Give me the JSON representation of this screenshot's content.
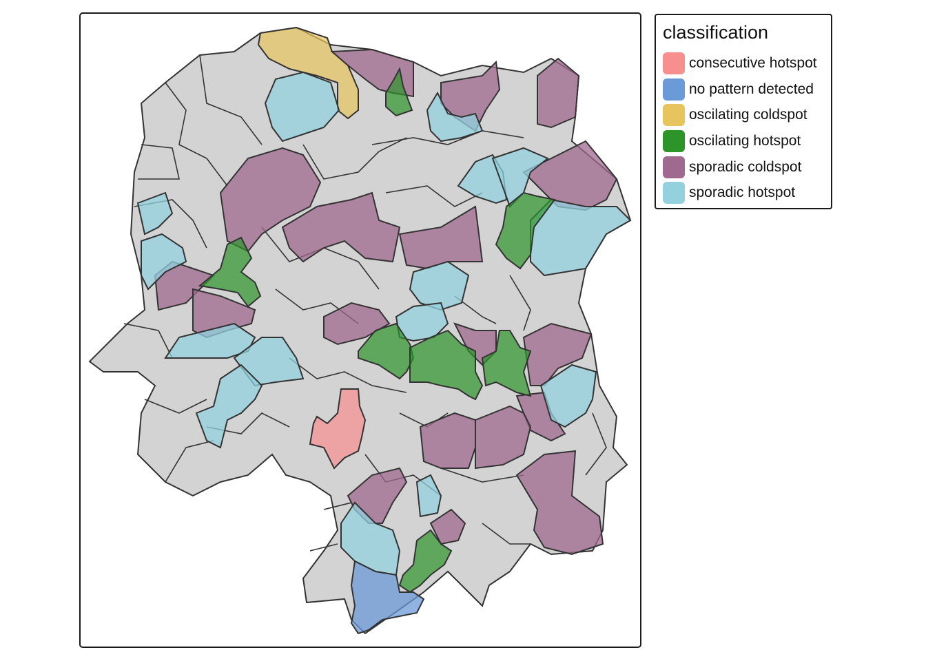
{
  "legend": {
    "title": "classification",
    "items": [
      {
        "label": "consecutive hotspot",
        "color": "#f88f8f"
      },
      {
        "label": "no pattern detected",
        "color": "#6b9ad8"
      },
      {
        "label": "oscilating coldspot",
        "color": "#e8c45f"
      },
      {
        "label": "oscilating hotspot",
        "color": "#2c9429"
      },
      {
        "label": "sporadic coldspot",
        "color": "#a0698f"
      },
      {
        "label": "sporadic hotspot",
        "color": "#93d1df"
      }
    ]
  },
  "map": {
    "background_region_color": "#d3d3d3",
    "border_color": "#333333",
    "region_classes": [
      "consecutive hotspot",
      "no pattern detected",
      "oscilating coldspot",
      "oscilating hotspot",
      "sporadic coldspot",
      "sporadic hotspot"
    ]
  }
}
